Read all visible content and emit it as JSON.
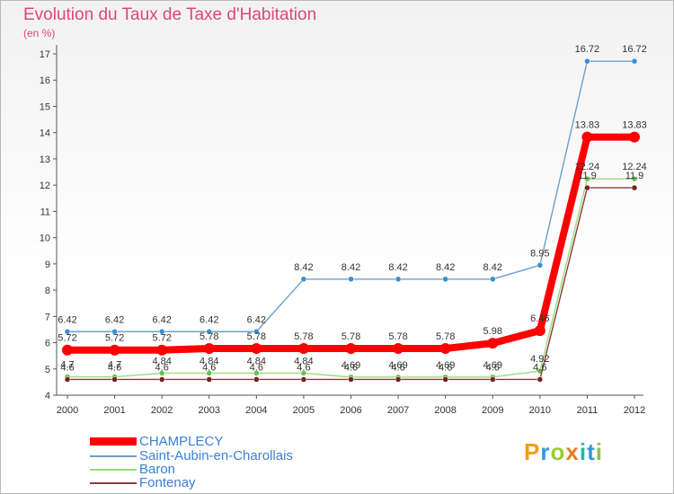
{
  "chart_data": {
    "type": "line",
    "title": "Evolution du Taux de Taxe d'Habitation",
    "subtitle": "(en %)",
    "x": [
      "2000",
      "2001",
      "2002",
      "2003",
      "2004",
      "2005",
      "2006",
      "2007",
      "2008",
      "2009",
      "2010",
      "2011",
      "2012"
    ],
    "yticks": [
      "4",
      "5",
      "6",
      "7",
      "8",
      "9",
      "10",
      "11",
      "12",
      "13",
      "14",
      "15",
      "16",
      "17"
    ],
    "ylim": [
      4,
      17
    ],
    "grid": false,
    "legend_position": "bottom-left",
    "series": [
      {
        "name": "CHAMPLECY",
        "color": "#ff0000",
        "values": [
          5.72,
          5.72,
          5.72,
          5.78,
          5.78,
          5.78,
          5.78,
          5.78,
          5.78,
          5.98,
          6.46,
          13.83,
          13.83
        ],
        "labels": [
          "5.72",
          "5.72",
          "5.72",
          "5.78",
          "5.78",
          "5.78",
          "5.78",
          "5.78",
          "5.78",
          "5.98",
          "6.46",
          "13.83",
          "13.83"
        ]
      },
      {
        "name": "Saint-Aubin-en-Charollais",
        "color": "#6b9fd0",
        "marker_color": "#3a8dd6",
        "values": [
          6.42,
          6.42,
          6.42,
          6.42,
          6.42,
          8.42,
          8.42,
          8.42,
          8.42,
          8.42,
          8.95,
          16.72,
          16.72
        ],
        "labels": [
          "6.42",
          "6.42",
          "6.42",
          "6.42",
          "6.42",
          "8.42",
          "8.42",
          "8.42",
          "8.42",
          "8.42",
          "8.95",
          "16.72",
          "16.72"
        ]
      },
      {
        "name": "Baron",
        "color": "#99dd77",
        "marker_color": "#6bc24a",
        "values": [
          4.7,
          4.7,
          4.84,
          4.84,
          4.84,
          4.84,
          4.69,
          4.69,
          4.69,
          4.69,
          4.92,
          12.24,
          12.24
        ],
        "labels": [
          "4.7",
          "4.7",
          "4.84",
          "4.84",
          "4.84",
          "4.84",
          "4.69",
          "4.69",
          "4.69",
          "4.69",
          "4.92",
          "12.24",
          "12.24"
        ]
      },
      {
        "name": "Fontenay",
        "color": "#8b3a3a",
        "marker_color": "#7a2020",
        "values": [
          4.6,
          4.6,
          4.6,
          4.6,
          4.6,
          4.6,
          4.6,
          4.6,
          4.6,
          4.6,
          4.6,
          11.9,
          11.9
        ],
        "labels": [
          "4.6",
          "4.6",
          "4.6",
          "4.6",
          "4.6",
          "4.6",
          "4.6",
          "4.6",
          "4.6",
          "4.6",
          "4.6",
          "11.9",
          "11.9"
        ]
      }
    ]
  },
  "logo": {
    "letters": [
      "P",
      "r",
      "o",
      "x",
      "i",
      "t",
      "i"
    ],
    "colors": [
      "#f39c12",
      "#3498db",
      "#9acd32",
      "#e67e22",
      "#1abc9c",
      "#3498db",
      "#8bc34a"
    ]
  }
}
